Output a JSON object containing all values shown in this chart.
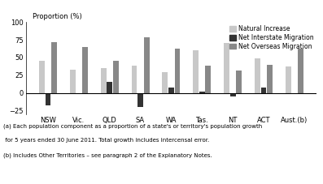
{
  "categories": [
    "NSW",
    "Vic.",
    "QLD",
    "SA",
    "WA",
    "Tas.",
    "NT",
    "ACT",
    "Aust.(b)"
  ],
  "natural_increase": [
    45,
    33,
    35,
    38,
    29,
    60,
    71,
    49,
    37
  ],
  "net_interstate": [
    -18,
    -1,
    15,
    -20,
    8,
    2,
    -5,
    8,
    0
  ],
  "net_overseas": [
    72,
    65,
    45,
    79,
    62,
    38,
    31,
    40,
    62
  ],
  "colors": {
    "natural_increase": "#c8c8c8",
    "net_interstate": "#333333",
    "net_overseas": "#888888"
  },
  "ylabel": "Proportion (%)",
  "ylim": [
    -30,
    100
  ],
  "yticks": [
    -25,
    0,
    25,
    50,
    75,
    100
  ],
  "legend_labels": [
    "Natural Increase",
    "Net Interstate Migration",
    "Net Overseas Migration"
  ],
  "footnote1": "(a) Each population component as a proportion of a state's or territory's population growth",
  "footnote2": " for 5 years ended 30 June 2011. Total growth includes intercensal error.",
  "footnote3": "(b) Includes Other Territories – see paragraph 2 of the Explanatory Notes."
}
